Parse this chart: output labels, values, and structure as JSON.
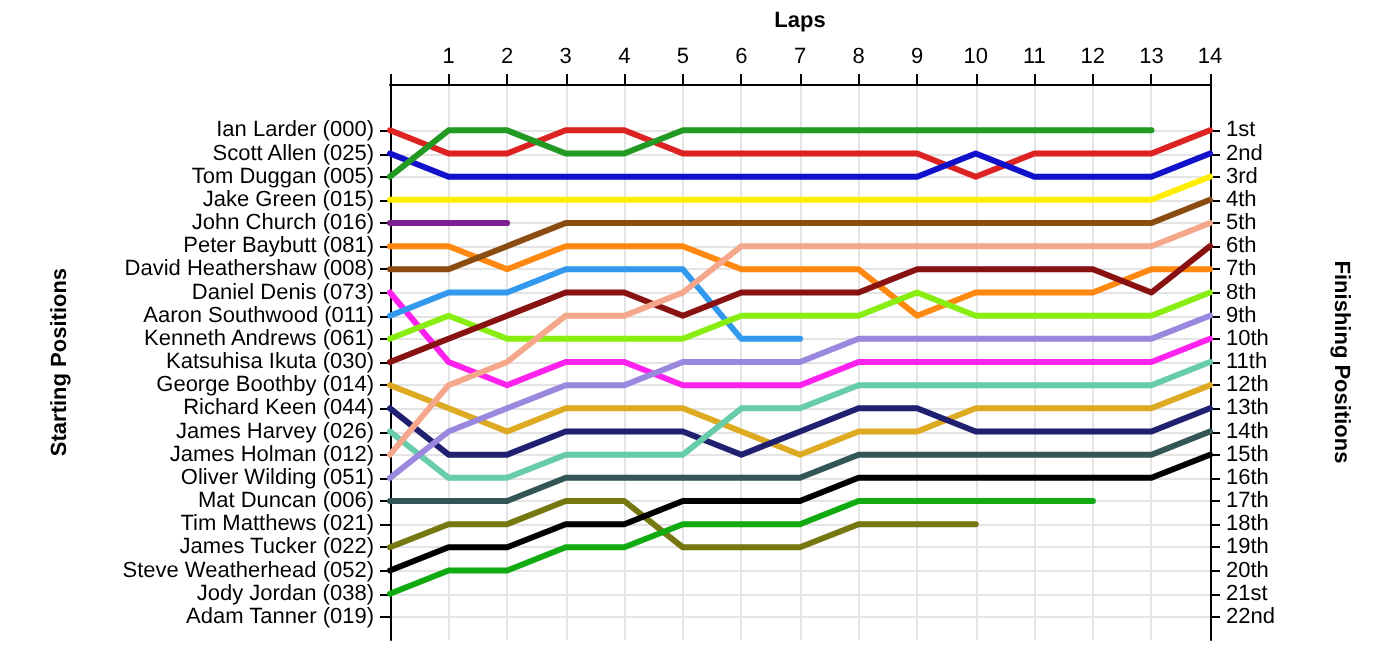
{
  "chart_data": {
    "type": "line",
    "xlabel": "Laps",
    "annotations": [
      "Starting Positions"
    ],
    "y2label": "Finishing Positions",
    "x": [
      0,
      1,
      2,
      3,
      4,
      5,
      6,
      7,
      8,
      9,
      10,
      11,
      12,
      13,
      14
    ],
    "xlim": [
      0,
      14
    ],
    "xticks": [
      {
        "value": 0,
        "label": null
      },
      1,
      2,
      3,
      4,
      5,
      6,
      7,
      8,
      9,
      10,
      11,
      12,
      13,
      14
    ],
    "y_categories": [
      "Ian Larder (000)",
      "Scott Allen (025)",
      "Tom Duggan (005)",
      "Jake Green (015)",
      "John Church (016)",
      "Peter Baybutt (081)",
      "David Heathershaw (008)",
      "Daniel Denis (073)",
      "Aaron Southwood (011)",
      "Kenneth Andrews (061)",
      "Katsuhisa Ikuta (030)",
      "George Boothby (014)",
      "Richard Keen (044)",
      "James Harvey (026)",
      "James Holman (012)",
      "Oliver Wilding (051)",
      "Mat Duncan (006)",
      "Tim Matthews (021)",
      "James Tucker (022)",
      "Steve Weatherhead (052)",
      "Jody Jordan (038)",
      "Adam Tanner (019)"
    ],
    "y2lim": [
      23,
      -1
    ],
    "y2ticks": [
      {
        "value": 1,
        "label": "1st"
      },
      {
        "value": 2,
        "label": "2nd"
      },
      {
        "value": 3,
        "label": "3rd"
      },
      {
        "value": 4,
        "label": "4th"
      },
      {
        "value": 5,
        "label": "5th"
      },
      {
        "value": 6,
        "label": "6th"
      },
      {
        "value": 7,
        "label": "7th"
      },
      {
        "value": 8,
        "label": "8th"
      },
      {
        "value": 9,
        "label": "9th"
      },
      {
        "value": 10,
        "label": "10th"
      },
      {
        "value": 11,
        "label": "11th"
      },
      {
        "value": 12,
        "label": "12th"
      },
      {
        "value": 13,
        "label": "13th"
      },
      {
        "value": 14,
        "label": "14th"
      },
      {
        "value": 15,
        "label": "15th"
      },
      {
        "value": 16,
        "label": "16th"
      },
      {
        "value": 17,
        "label": "17th"
      },
      {
        "value": 18,
        "label": "18th"
      },
      {
        "value": 19,
        "label": "19th"
      },
      {
        "value": 20,
        "label": "20th"
      },
      {
        "value": 21,
        "label": "21st"
      },
      {
        "value": 22,
        "label": "22nd"
      }
    ],
    "grid": true,
    "marker": "none",
    "line_style": "solid",
    "series": [
      {
        "axis": "y2",
        "color": "#dd2222",
        "values": [
          1,
          2,
          2,
          1,
          1,
          2,
          2,
          2,
          2,
          2,
          3,
          2,
          2,
          2,
          1
        ]
      },
      {
        "axis": "y2",
        "color": "#1111cc",
        "values": [
          2,
          3,
          3,
          3,
          3,
          3,
          3,
          3,
          3,
          3,
          2,
          3,
          3,
          3,
          2
        ]
      },
      {
        "axis": "y2",
        "color": "#229922",
        "values": [
          3,
          1,
          1,
          2,
          2,
          1,
          1,
          1,
          1,
          1,
          1,
          1,
          1,
          1,
          null
        ]
      },
      {
        "axis": "y2",
        "color": "#ffee00",
        "values": [
          4,
          4,
          4,
          4,
          4,
          4,
          4,
          4,
          4,
          4,
          4,
          4,
          4,
          4,
          3
        ]
      },
      {
        "axis": "y2",
        "color": "#7f1f8f",
        "values": [
          5,
          5,
          5,
          null,
          null,
          null,
          null,
          null,
          null,
          null,
          null,
          null,
          null,
          null,
          null
        ]
      },
      {
        "axis": "y2",
        "color": "#ff8811",
        "values": [
          6,
          6,
          7,
          6,
          6,
          6,
          7,
          7,
          7,
          9,
          8,
          8,
          8,
          7,
          7
        ]
      },
      {
        "axis": "y2",
        "color": "#8b4c11",
        "values": [
          7,
          7,
          6,
          5,
          5,
          5,
          5,
          5,
          5,
          5,
          5,
          5,
          5,
          5,
          4
        ]
      },
      {
        "axis": "y2",
        "color": "#ff22ee",
        "values": [
          8,
          11,
          12,
          11,
          11,
          12,
          12,
          12,
          11,
          11,
          11,
          11,
          11,
          11,
          10
        ]
      },
      {
        "axis": "y2",
        "color": "#3399ee",
        "values": [
          9,
          8,
          8,
          7,
          7,
          7,
          10,
          10,
          null,
          null,
          null,
          null,
          null,
          null,
          null
        ]
      },
      {
        "axis": "y2",
        "color": "#88ee11",
        "values": [
          10,
          9,
          10,
          10,
          10,
          10,
          9,
          9,
          9,
          8,
          9,
          9,
          9,
          9,
          8
        ]
      },
      {
        "axis": "y2",
        "color": "#881111",
        "values": [
          11,
          10,
          9,
          8,
          8,
          9,
          8,
          8,
          8,
          7,
          7,
          7,
          7,
          8,
          6
        ]
      },
      {
        "axis": "y2",
        "color": "#ddaa22",
        "values": [
          12,
          13,
          14,
          13,
          13,
          13,
          14,
          15,
          14,
          14,
          13,
          13,
          13,
          13,
          12
        ]
      },
      {
        "axis": "y2",
        "color": "#202070",
        "values": [
          13,
          15,
          15,
          14,
          14,
          14,
          15,
          14,
          13,
          13,
          14,
          14,
          14,
          14,
          13
        ]
      },
      {
        "axis": "y2",
        "color": "#66ccaa",
        "values": [
          14,
          16,
          16,
          15,
          15,
          15,
          13,
          13,
          12,
          12,
          12,
          12,
          12,
          12,
          11
        ]
      },
      {
        "axis": "y2",
        "color": "#f4a78a",
        "values": [
          15,
          12,
          11,
          9,
          9,
          8,
          6,
          6,
          6,
          6,
          6,
          6,
          6,
          6,
          5
        ]
      },
      {
        "axis": "y2",
        "color": "#9988dd",
        "values": [
          16,
          14,
          13,
          12,
          12,
          11,
          11,
          11,
          10,
          10,
          10,
          10,
          10,
          10,
          9
        ]
      },
      {
        "axis": "y2",
        "color": "#335555",
        "values": [
          17,
          17,
          17,
          16,
          16,
          16,
          16,
          16,
          15,
          15,
          15,
          15,
          15,
          15,
          14
        ]
      },
      {
        "axis": "y2",
        "color": "#777711",
        "values": [
          19,
          18,
          18,
          17,
          17,
          19,
          19,
          19,
          18,
          18,
          18,
          null,
          null,
          null,
          null
        ]
      },
      {
        "axis": "y2",
        "color": "#000000",
        "values": [
          20,
          19,
          19,
          18,
          18,
          17,
          17,
          17,
          16,
          16,
          16,
          16,
          16,
          16,
          15
        ]
      },
      {
        "axis": "y2",
        "color": "#11aa11",
        "values": [
          21,
          20,
          20,
          19,
          19,
          18,
          18,
          18,
          17,
          17,
          17,
          17,
          17,
          null,
          null
        ]
      }
    ]
  }
}
